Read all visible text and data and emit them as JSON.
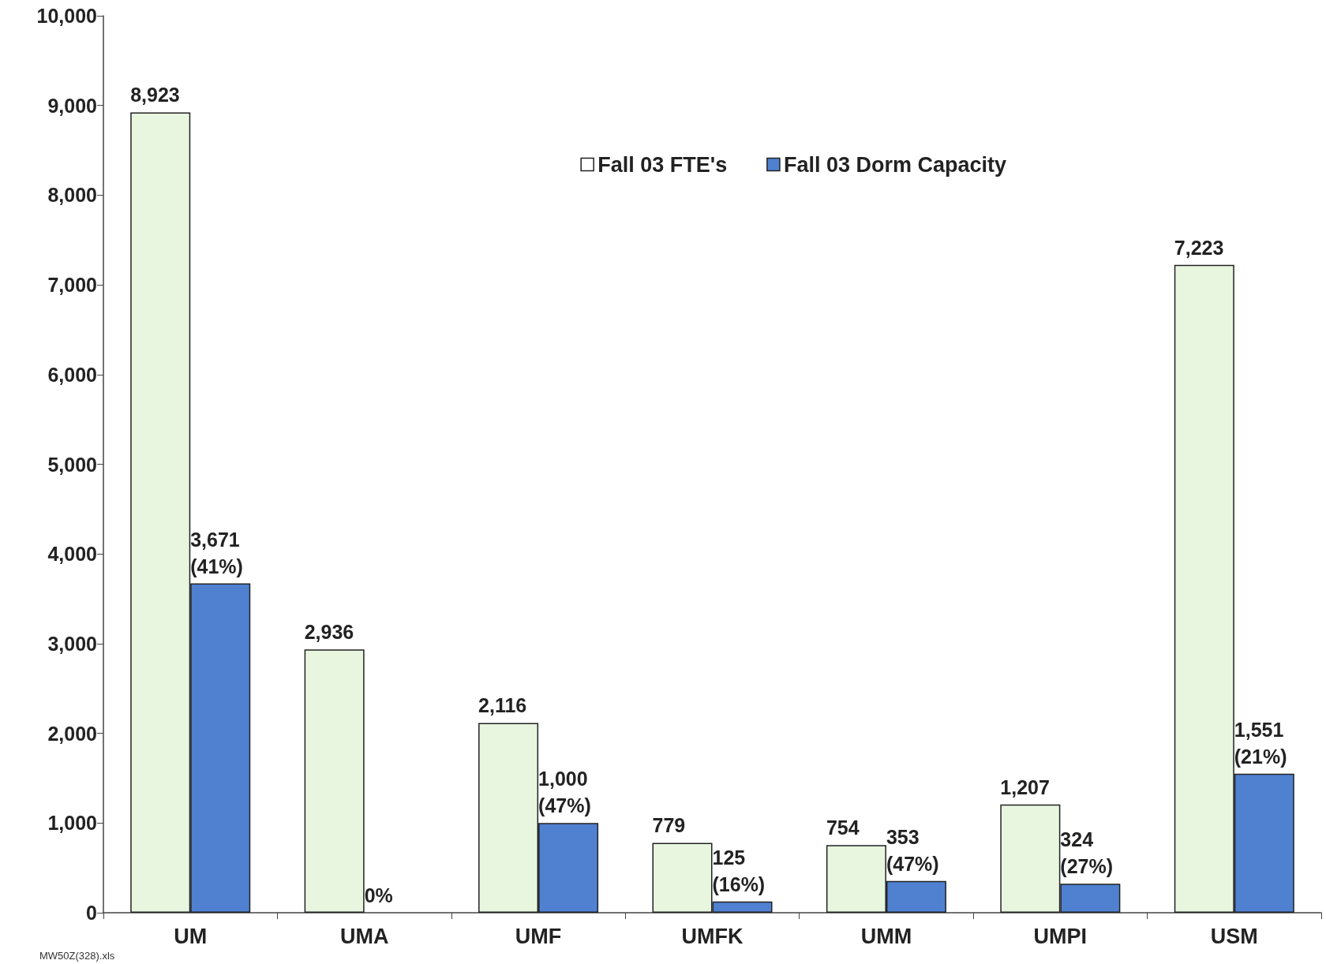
{
  "chart_data": {
    "type": "bar",
    "categories": [
      "UM",
      "UMA",
      "UMF",
      "UMFK",
      "UMM",
      "UMPI",
      "USM"
    ],
    "series": [
      {
        "name": "Fall 03 FTE's",
        "color": "#e8f6e0",
        "values": [
          8923,
          2936,
          2116,
          779,
          754,
          1207,
          7223
        ],
        "value_labels": [
          "8,923",
          "2,936",
          "2,116",
          "779",
          "754",
          "1,207",
          "7,223"
        ]
      },
      {
        "name": "Fall 03 Dorm Capacity",
        "color": "#4f81d0",
        "values": [
          3671,
          0,
          1000,
          125,
          353,
          324,
          1551
        ],
        "value_labels": [
          "3,671\n(41%)",
          "0%",
          "1,000\n(47%)",
          "125\n(16%)",
          "353\n(47%)",
          "324\n(27%)",
          "1,551\n(21%)"
        ]
      }
    ],
    "ylim": [
      0,
      10000
    ],
    "yticks": [
      0,
      {
        "value": 1000,
        "label": "1,000"
      },
      {
        "value": 2000,
        "label": "2,000"
      },
      {
        "value": 3000,
        "label": "3,000"
      },
      {
        "value": 4000,
        "label": "4,000"
      },
      {
        "value": 5000,
        "label": "5,000"
      },
      {
        "value": 6000,
        "label": "6,000"
      },
      {
        "value": 7000,
        "label": "7,000"
      },
      {
        "value": 8000,
        "label": "8,000"
      },
      {
        "value": 9000,
        "label": "9,000"
      },
      {
        "value": 10000,
        "label": "10,000"
      }
    ],
    "grid": false,
    "legend": "top right",
    "annotations": [
      "MW50Z(328).xls"
    ]
  }
}
